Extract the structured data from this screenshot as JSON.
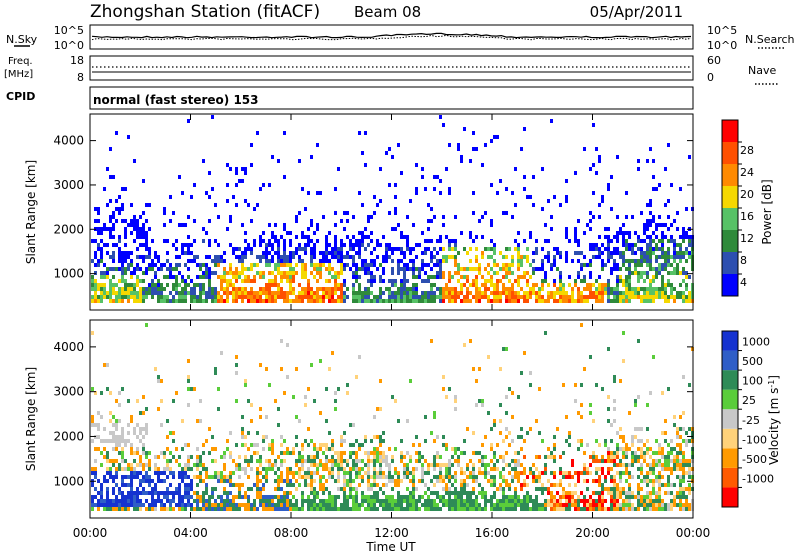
{
  "header": {
    "station": "Zhongshan Station (fitACF)",
    "beam": "Beam 08",
    "date": "05/Apr/2011"
  },
  "strip_noise": {
    "left_label": "N.Sky",
    "right_label": "N.Search",
    "left_ticks": [
      "10^5",
      "10^0"
    ],
    "right_ticks": [
      "10^5",
      "10^0"
    ]
  },
  "strip_freq": {
    "left_label": "Freq.",
    "left_unit": "[MHz]",
    "right_label": "Nave",
    "left_ticks": [
      "18",
      "8"
    ],
    "right_ticks": [
      "60",
      "0"
    ]
  },
  "strip_cpid": {
    "label": "CPID",
    "text": "normal (fast stereo) 153"
  },
  "colors": {
    "power": [
      "#0000ff",
      "#2d4fb0",
      "#2f8a3a",
      "#57c266",
      "#f5d800",
      "#ff8a00",
      "#ff5000",
      "#ff0000"
    ],
    "velocity": [
      "#ff0000",
      "#ff5a00",
      "#ff9a00",
      "#ffd27a",
      "#c8c8c8",
      "#5acd3a",
      "#2e8b57",
      "#2f5ec7",
      "#1532d0"
    ]
  },
  "chart_data": [
    {
      "type": "heatmap",
      "title": "Power",
      "ylabel": "Slant Range [km]",
      "xlabel": "",
      "ylim": [
        180,
        4600
      ],
      "xlim": [
        0,
        24
      ],
      "yticks": [
        "1000",
        "2000",
        "3000",
        "4000"
      ],
      "xticks": [
        "00:00",
        "04:00",
        "08:00",
        "12:00",
        "16:00",
        "20:00",
        "00:00"
      ],
      "colorbar_label": "Power [dB]",
      "colorbar_ticks": [
        "4",
        "8",
        "12",
        "16",
        "20",
        "24",
        "28"
      ],
      "colorbar_range": [
        0,
        32
      ]
    },
    {
      "type": "heatmap",
      "title": "Velocity",
      "ylabel": "Slant Range [km]",
      "xlabel": "Time UT",
      "ylim": [
        180,
        4600
      ],
      "xlim": [
        0,
        24
      ],
      "yticks": [
        "1000",
        "2000",
        "3000",
        "4000"
      ],
      "xticks": [
        "00:00",
        "04:00",
        "08:00",
        "12:00",
        "16:00",
        "20:00",
        "00:00"
      ],
      "colorbar_label": "Velocity [m s",
      "colorbar_label_sup": "-1",
      "colorbar_label_end": "]",
      "colorbar_ticks": [
        "1000",
        "500",
        "100",
        "25",
        "-25",
        "-100",
        "-500",
        "-1000"
      ]
    }
  ]
}
